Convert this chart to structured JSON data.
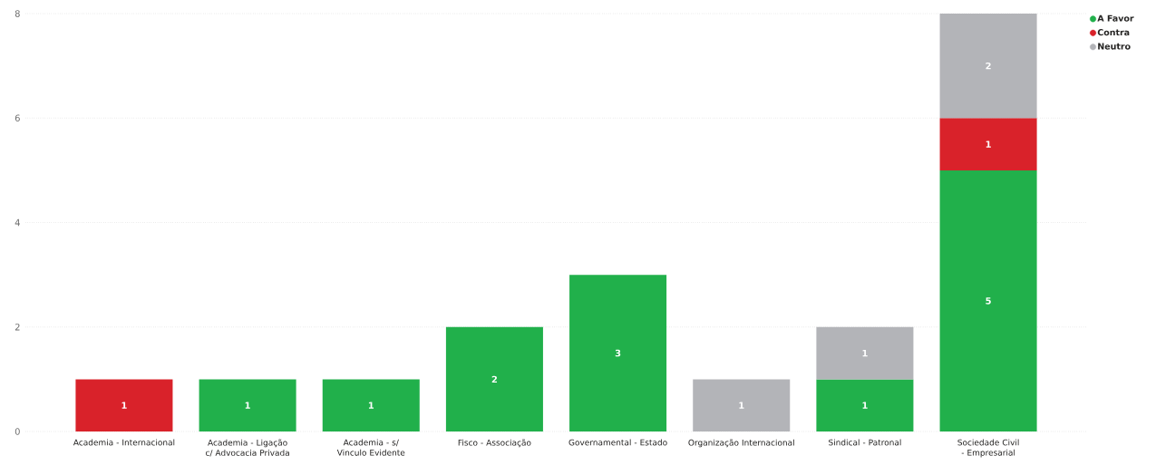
{
  "chart_data": {
    "type": "bar",
    "stacked": true,
    "categories": [
      "Academia - Internacional",
      "Academia - Ligação c/ Advocacia Privada",
      "Academia - s/ Vinculo Evidente",
      "Fisco - Associação",
      "Governamental - Estado",
      "Organização Internacional",
      "Sindical - Patronal",
      "Sociedade Civil - Empresarial"
    ],
    "series": [
      {
        "name": "A Favor",
        "color": "#21b04b",
        "values": [
          null,
          1,
          1,
          2,
          3,
          null,
          1,
          5
        ]
      },
      {
        "name": "Contra",
        "color": "#d9222a",
        "values": [
          1,
          null,
          null,
          null,
          null,
          null,
          null,
          1
        ]
      },
      {
        "name": "Neutro",
        "color": "#b3b4b8",
        "values": [
          null,
          null,
          null,
          null,
          null,
          1,
          1,
          2
        ]
      }
    ],
    "ylim": [
      0,
      8
    ],
    "yticks": [
      0,
      2,
      4,
      6,
      8
    ],
    "grid": "y",
    "legend": "top right",
    "data_labels": true
  }
}
